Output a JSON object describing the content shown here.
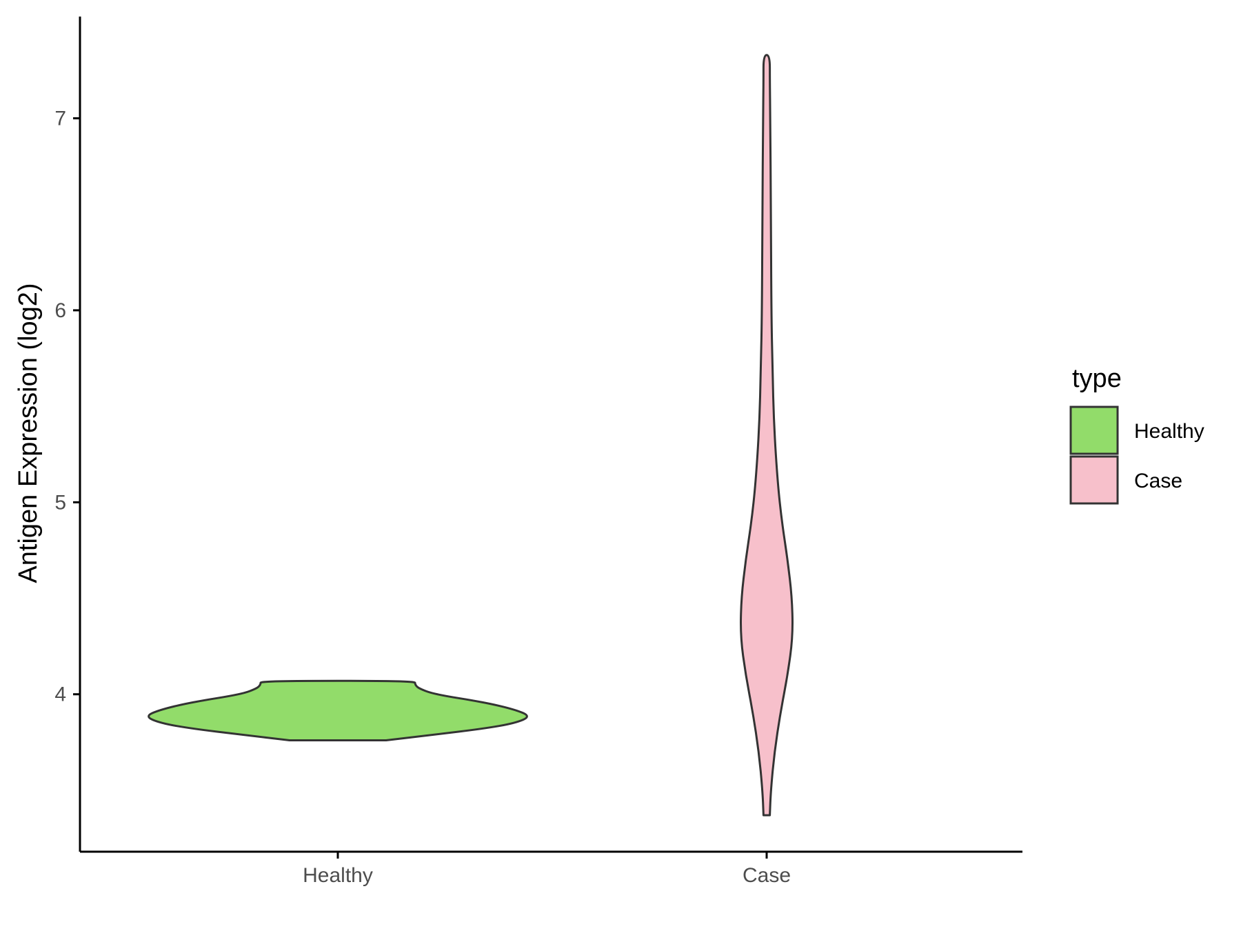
{
  "chart_data": {
    "type": "violin",
    "title": "",
    "xlabel": "",
    "ylabel": "Antigen Expression (log2)",
    "categories": [
      "Healthy",
      "Case"
    ],
    "y_ticks": [
      4,
      5,
      6,
      7
    ],
    "ylim": [
      3.18,
      7.53
    ],
    "grid": false,
    "legend": {
      "title": "type",
      "placement": "right",
      "entries": [
        {
          "label": "Healthy",
          "color": "#92dc6a"
        },
        {
          "label": "Case",
          "color": "#f7c0cb"
        }
      ]
    },
    "series": [
      {
        "category": "Healthy",
        "color": "#92dc6a",
        "min": 3.76,
        "max": 4.07,
        "density": [
          [
            3.76,
            0.25
          ],
          [
            3.79,
            0.5
          ],
          [
            3.82,
            0.75
          ],
          [
            3.85,
            0.92
          ],
          [
            3.885,
            1.0
          ],
          [
            3.92,
            0.92
          ],
          [
            3.96,
            0.75
          ],
          [
            4.0,
            0.5
          ],
          [
            4.03,
            0.42
          ],
          [
            4.05,
            0.4
          ],
          [
            4.07,
            0.4
          ]
        ]
      },
      {
        "category": "Case",
        "color": "#f7c0cb",
        "min": 3.37,
        "max": 7.33,
        "density": [
          [
            3.37,
            0.12
          ],
          [
            3.5,
            0.16
          ],
          [
            3.7,
            0.3
          ],
          [
            3.9,
            0.52
          ],
          [
            4.1,
            0.8
          ],
          [
            4.3,
            1.0
          ],
          [
            4.5,
            0.97
          ],
          [
            4.7,
            0.8
          ],
          [
            4.9,
            0.58
          ],
          [
            5.1,
            0.42
          ],
          [
            5.4,
            0.28
          ],
          [
            5.7,
            0.22
          ],
          [
            6.0,
            0.18
          ],
          [
            6.5,
            0.16
          ],
          [
            7.0,
            0.14
          ],
          [
            7.2,
            0.12
          ],
          [
            7.33,
            0.12
          ]
        ]
      }
    ]
  }
}
